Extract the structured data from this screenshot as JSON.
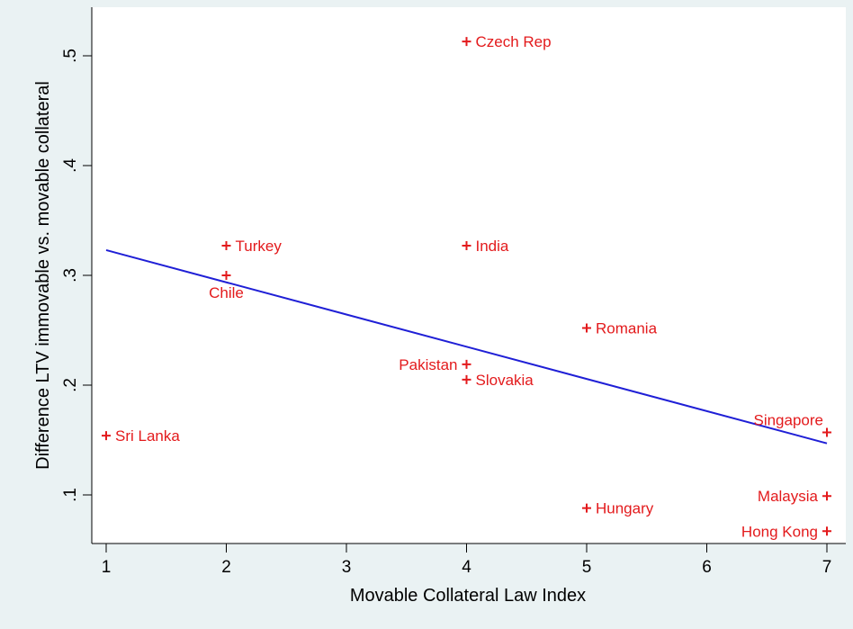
{
  "chart_data": {
    "type": "scatter",
    "title": "",
    "xlabel": "Movable Collateral Law Index",
    "ylabel": "Difference LTV immovable vs. movable collateral",
    "xlim": [
      0.88,
      7.1
    ],
    "ylim": [
      0.06,
      0.53
    ],
    "x_ticks": [
      1,
      2,
      3,
      4,
      5,
      6,
      7
    ],
    "x_tick_labels": [
      "1",
      "2",
      "3",
      "4",
      "5",
      "6",
      "7"
    ],
    "y_ticks": [
      0.1,
      0.2,
      0.3,
      0.4,
      0.5
    ],
    "y_tick_labels": [
      ".1",
      ".2",
      ".3",
      ".4",
      ".5"
    ],
    "grid": false,
    "marker_color": "#e31a1c",
    "line_color": "#1f1fd6",
    "points": [
      {
        "label": "Czech Rep",
        "x": 4,
        "y": 0.513,
        "label_side": "right"
      },
      {
        "label": "Turkey",
        "x": 2,
        "y": 0.327,
        "label_side": "right"
      },
      {
        "label": "India",
        "x": 4,
        "y": 0.327,
        "label_side": "right"
      },
      {
        "label": "Chile",
        "x": 2,
        "y": 0.3,
        "label_side": "below"
      },
      {
        "label": "Romania",
        "x": 5,
        "y": 0.252,
        "label_side": "right"
      },
      {
        "label": "Pakistan",
        "x": 4,
        "y": 0.219,
        "label_side": "left"
      },
      {
        "label": "Slovakia",
        "x": 4,
        "y": 0.205,
        "label_side": "right"
      },
      {
        "label": "Sri Lanka",
        "x": 1,
        "y": 0.154,
        "label_side": "right"
      },
      {
        "label": "Singapore",
        "x": 7,
        "y": 0.157,
        "label_side": "above-left"
      },
      {
        "label": "Malaysia",
        "x": 7,
        "y": 0.099,
        "label_side": "left"
      },
      {
        "label": "Hungary",
        "x": 5,
        "y": 0.088,
        "label_side": "right"
      },
      {
        "label": "Hong Kong",
        "x": 7,
        "y": 0.067,
        "label_side": "left"
      }
    ],
    "fit_line": {
      "x": [
        1,
        7
      ],
      "y": [
        0.323,
        0.147
      ]
    }
  }
}
